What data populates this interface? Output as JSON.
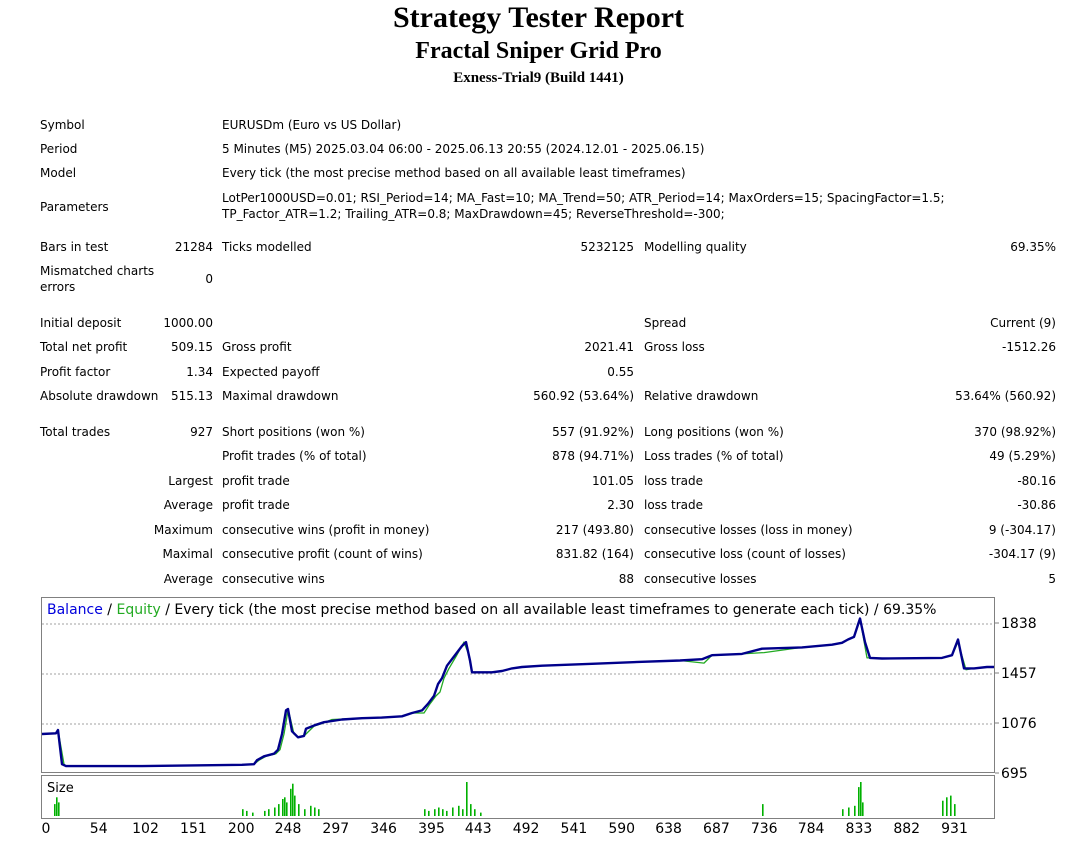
{
  "header": {
    "title": "Strategy Tester Report",
    "expert": "Fractal Sniper Grid Pro",
    "account": "Exness-Trial9 (Build 1441)"
  },
  "settings": {
    "symbol_label": "Symbol",
    "symbol_value": "EURUSDm (Euro vs US Dollar)",
    "period_label": "Period",
    "period_value": "5 Minutes (M5) 2025.03.04 06:00 - 2025.06.13 20:55 (2024.12.01 - 2025.06.15)",
    "model_label": "Model",
    "model_value": "Every tick (the most precise method based on all available least timeframes)",
    "parameters_label": "Parameters",
    "parameters_line1": "LotPer1000USD=0.01; RSI_Period=14; MA_Fast=10; MA_Trend=50; ATR_Period=14; MaxOrders=15; SpacingFactor=1.5;",
    "parameters_line2": "TP_Factor_ATR=1.2; Trailing_ATR=0.8; MaxDrawdown=45; ReverseThreshold=-300;"
  },
  "stats": {
    "bars_label": "Bars in test",
    "bars_value": "21284",
    "ticks_label": "Ticks modelled",
    "ticks_value": "5232125",
    "quality_label": "Modelling quality",
    "quality_value": "69.35%",
    "mismatch_label_1": "Mismatched charts",
    "mismatch_label_2": "errors",
    "mismatch_value": "0",
    "deposit_label": "Initial deposit",
    "deposit_value": "1000.00",
    "spread_label": "Spread",
    "spread_value": "Current (9)",
    "net_label": "Total net profit",
    "net_value": "509.15",
    "gross_profit_label": "Gross profit",
    "gross_profit_value": "2021.41",
    "gross_loss_label": "Gross loss",
    "gross_loss_value": "-1512.26",
    "pf_label": "Profit factor",
    "pf_value": "1.34",
    "payoff_label": "Expected payoff",
    "payoff_value": "0.55",
    "abs_dd_label": "Absolute drawdown",
    "abs_dd_value": "515.13",
    "max_dd_label": "Maximal drawdown",
    "max_dd_value": "560.92 (53.64%)",
    "rel_dd_label": "Relative drawdown",
    "rel_dd_value": "53.64% (560.92)",
    "trades_label": "Total trades",
    "trades_value": "927",
    "short_label": "Short positions (won %)",
    "short_value": "557 (91.92%)",
    "long_label": "Long positions (won %)",
    "long_value": "370 (98.92%)",
    "profit_trades_label": "Profit trades (% of total)",
    "profit_trades_value": "878 (94.71%)",
    "loss_trades_label": "Loss trades (% of total)",
    "loss_trades_value": "49 (5.29%)",
    "largest_prefix": "Largest",
    "largest_profit_label": "profit trade",
    "largest_profit_value": "101.05",
    "largest_loss_label": "loss trade",
    "largest_loss_value": "-80.16",
    "average_prefix": "Average",
    "average_profit_label": "profit trade",
    "average_profit_value": "2.30",
    "average_loss_label": "loss trade",
    "average_loss_value": "-30.86",
    "maximum_prefix": "Maximum",
    "max_wins_label": "consecutive wins (profit in money)",
    "max_wins_value": "217 (493.80)",
    "max_losses_label": "consecutive losses (loss in money)",
    "max_losses_value": "9 (-304.17)",
    "maximal_prefix": "Maximal",
    "maximal_profit_label": "consecutive profit (count of wins)",
    "maximal_profit_value": "831.82 (164)",
    "maximal_loss_label": "consecutive loss (count of losses)",
    "maximal_loss_value": "-304.17 (9)",
    "average2_prefix": "Average",
    "avg_wins_label": "consecutive wins",
    "avg_wins_value": "88",
    "avg_losses_label": "consecutive losses",
    "avg_losses_value": "5"
  },
  "chart_data": {
    "type": "line",
    "legend": {
      "balance": "Balance",
      "sep1": " / ",
      "equity": "Equity",
      "rest": " / Every tick (the most precise method based on all available least timeframes to generate each tick) / 69.35%"
    },
    "colors": {
      "balance": "#00008b",
      "equity": "#22aa22",
      "size": "#00b000",
      "legend_balance": "#0000dd",
      "legend_equity": "#22aa22"
    },
    "ylim": [
      695,
      1900
    ],
    "y_ticks": [
      "1838",
      "1457",
      "1076",
      "695"
    ],
    "y_tick_values": [
      1838,
      1457,
      1076,
      695
    ],
    "xlim": [
      0,
      952
    ],
    "x_ticks": [
      "0",
      "54",
      "102",
      "151",
      "200",
      "248",
      "297",
      "346",
      "395",
      "443",
      "492",
      "541",
      "590",
      "638",
      "687",
      "736",
      "784",
      "833",
      "882",
      "931"
    ],
    "x_tick_values": [
      0,
      54,
      102,
      151,
      200,
      248,
      297,
      346,
      395,
      443,
      492,
      541,
      590,
      638,
      687,
      736,
      784,
      833,
      882,
      931
    ],
    "size_label": "Size",
    "series": [
      {
        "name": "Balance",
        "points": [
          [
            0,
            1000
          ],
          [
            14,
            1005
          ],
          [
            16,
            1030
          ],
          [
            20,
            770
          ],
          [
            24,
            755
          ],
          [
            100,
            755
          ],
          [
            200,
            765
          ],
          [
            212,
            770
          ],
          [
            215,
            800
          ],
          [
            222,
            830
          ],
          [
            232,
            850
          ],
          [
            236,
            880
          ],
          [
            240,
            1000
          ],
          [
            244,
            1180
          ],
          [
            246,
            1190
          ],
          [
            250,
            1020
          ],
          [
            256,
            975
          ],
          [
            262,
            985
          ],
          [
            264,
            1040
          ],
          [
            274,
            1070
          ],
          [
            282,
            1090
          ],
          [
            300,
            1110
          ],
          [
            320,
            1120
          ],
          [
            340,
            1125
          ],
          [
            360,
            1135
          ],
          [
            370,
            1160
          ],
          [
            380,
            1180
          ],
          [
            386,
            1230
          ],
          [
            392,
            1290
          ],
          [
            396,
            1380
          ],
          [
            400,
            1425
          ],
          [
            405,
            1520
          ],
          [
            412,
            1590
          ],
          [
            420,
            1670
          ],
          [
            424,
            1700
          ],
          [
            428,
            1560
          ],
          [
            430,
            1470
          ],
          [
            440,
            1470
          ],
          [
            450,
            1470
          ],
          [
            460,
            1480
          ],
          [
            470,
            1500
          ],
          [
            480,
            1510
          ],
          [
            500,
            1520
          ],
          [
            550,
            1535
          ],
          [
            600,
            1550
          ],
          [
            638,
            1560
          ],
          [
            660,
            1570
          ],
          [
            670,
            1600
          ],
          [
            700,
            1610
          ],
          [
            720,
            1650
          ],
          [
            760,
            1660
          ],
          [
            790,
            1680
          ],
          [
            800,
            1695
          ],
          [
            806,
            1720
          ],
          [
            812,
            1740
          ],
          [
            818,
            1880
          ],
          [
            823,
            1700
          ],
          [
            828,
            1580
          ],
          [
            840,
            1575
          ],
          [
            900,
            1580
          ],
          [
            910,
            1600
          ],
          [
            916,
            1720
          ],
          [
            922,
            1500
          ],
          [
            932,
            1500
          ],
          [
            945,
            1510
          ],
          [
            952,
            1510
          ]
        ]
      },
      {
        "name": "Equity",
        "points": [
          [
            0,
            1000
          ],
          [
            14,
            1005
          ],
          [
            16,
            1030
          ],
          [
            22,
            770
          ],
          [
            24,
            755
          ],
          [
            100,
            755
          ],
          [
            200,
            765
          ],
          [
            212,
            770
          ],
          [
            217,
            800
          ],
          [
            224,
            830
          ],
          [
            234,
            850
          ],
          [
            238,
            880
          ],
          [
            242,
            1000
          ],
          [
            246,
            1180
          ],
          [
            248,
            1130
          ],
          [
            252,
            1000
          ],
          [
            256,
            975
          ],
          [
            262,
            985
          ],
          [
            264,
            1000
          ],
          [
            272,
            1060
          ],
          [
            280,
            1080
          ],
          [
            290,
            1110
          ],
          [
            320,
            1120
          ],
          [
            340,
            1125
          ],
          [
            360,
            1135
          ],
          [
            370,
            1160
          ],
          [
            382,
            1160
          ],
          [
            388,
            1230
          ],
          [
            394,
            1290
          ],
          [
            398,
            1320
          ],
          [
            402,
            1425
          ],
          [
            407,
            1500
          ],
          [
            414,
            1590
          ],
          [
            422,
            1700
          ],
          [
            426,
            1620
          ],
          [
            430,
            1470
          ],
          [
            440,
            1470
          ],
          [
            450,
            1470
          ],
          [
            460,
            1480
          ],
          [
            470,
            1500
          ],
          [
            480,
            1510
          ],
          [
            500,
            1520
          ],
          [
            550,
            1535
          ],
          [
            600,
            1550
          ],
          [
            638,
            1560
          ],
          [
            662,
            1540
          ],
          [
            670,
            1600
          ],
          [
            700,
            1610
          ],
          [
            722,
            1620
          ],
          [
            760,
            1660
          ],
          [
            790,
            1680
          ],
          [
            800,
            1695
          ],
          [
            806,
            1720
          ],
          [
            812,
            1740
          ],
          [
            818,
            1880
          ],
          [
            825,
            1580
          ],
          [
            828,
            1580
          ],
          [
            840,
            1575
          ],
          [
            900,
            1580
          ],
          [
            910,
            1600
          ],
          [
            916,
            1700
          ],
          [
            924,
            1490
          ],
          [
            932,
            1500
          ],
          [
            945,
            1510
          ],
          [
            952,
            1510
          ]
        ]
      }
    ],
    "size_bars": [
      [
        12,
        0.35
      ],
      [
        14,
        0.55
      ],
      [
        16,
        0.4
      ],
      [
        200,
        0.2
      ],
      [
        204,
        0.15
      ],
      [
        210,
        0.1
      ],
      [
        222,
        0.15
      ],
      [
        226,
        0.2
      ],
      [
        232,
        0.25
      ],
      [
        236,
        0.35
      ],
      [
        240,
        0.5
      ],
      [
        242,
        0.55
      ],
      [
        244,
        0.4
      ],
      [
        248,
        0.8
      ],
      [
        250,
        0.95
      ],
      [
        252,
        0.6
      ],
      [
        256,
        0.35
      ],
      [
        262,
        0.2
      ],
      [
        268,
        0.3
      ],
      [
        272,
        0.25
      ],
      [
        276,
        0.2
      ],
      [
        382,
        0.2
      ],
      [
        386,
        0.15
      ],
      [
        392,
        0.2
      ],
      [
        396,
        0.25
      ],
      [
        400,
        0.2
      ],
      [
        404,
        0.15
      ],
      [
        410,
        0.25
      ],
      [
        416,
        0.3
      ],
      [
        420,
        0.2
      ],
      [
        424,
        1.0
      ],
      [
        428,
        0.35
      ],
      [
        432,
        0.2
      ],
      [
        438,
        0.1
      ],
      [
        720,
        0.35
      ],
      [
        800,
        0.2
      ],
      [
        806,
        0.25
      ],
      [
        812,
        0.3
      ],
      [
        816,
        0.85
      ],
      [
        818,
        1.0
      ],
      [
        820,
        0.4
      ],
      [
        900,
        0.45
      ],
      [
        904,
        0.55
      ],
      [
        908,
        0.6
      ],
      [
        912,
        0.35
      ]
    ]
  }
}
